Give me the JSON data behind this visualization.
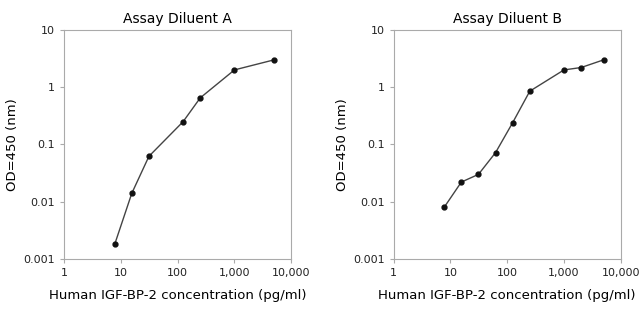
{
  "panel_A": {
    "title": "Assay Diluent A",
    "x": [
      7.8,
      15.6,
      31.25,
      125,
      250,
      1000,
      5000
    ],
    "y": [
      0.0018,
      0.014,
      0.062,
      0.25,
      0.65,
      2.0,
      3.0
    ]
  },
  "panel_B": {
    "title": "Assay Diluent B",
    "x": [
      7.8,
      15.6,
      31.25,
      62.5,
      125,
      250,
      1000,
      2000,
      5000
    ],
    "y": [
      0.008,
      0.022,
      0.03,
      0.072,
      0.24,
      0.85,
      2.0,
      2.2,
      3.0
    ]
  },
  "xlabel": "Human IGF-BP-2 concentration (pg/ml)",
  "ylabel": "OD=450 (nm)",
  "xlim": [
    1,
    8000
  ],
  "ylim": [
    0.001,
    10
  ],
  "xticks": [
    1,
    10,
    100,
    1000,
    10000
  ],
  "xticklabels": [
    "1",
    "10",
    "100",
    "1,000",
    "10,000"
  ],
  "yticks": [
    0.001,
    0.01,
    0.1,
    1,
    10
  ],
  "yticklabels": [
    "0.001",
    "0.01",
    "0.1",
    "1",
    "10"
  ],
  "line_color": "#444444",
  "marker_color": "#111111",
  "bg_color": "#ffffff",
  "plot_bg": "#ffffff",
  "spine_color": "#aaaaaa",
  "title_fontsize": 10,
  "label_fontsize": 9.5,
  "tick_fontsize": 8
}
